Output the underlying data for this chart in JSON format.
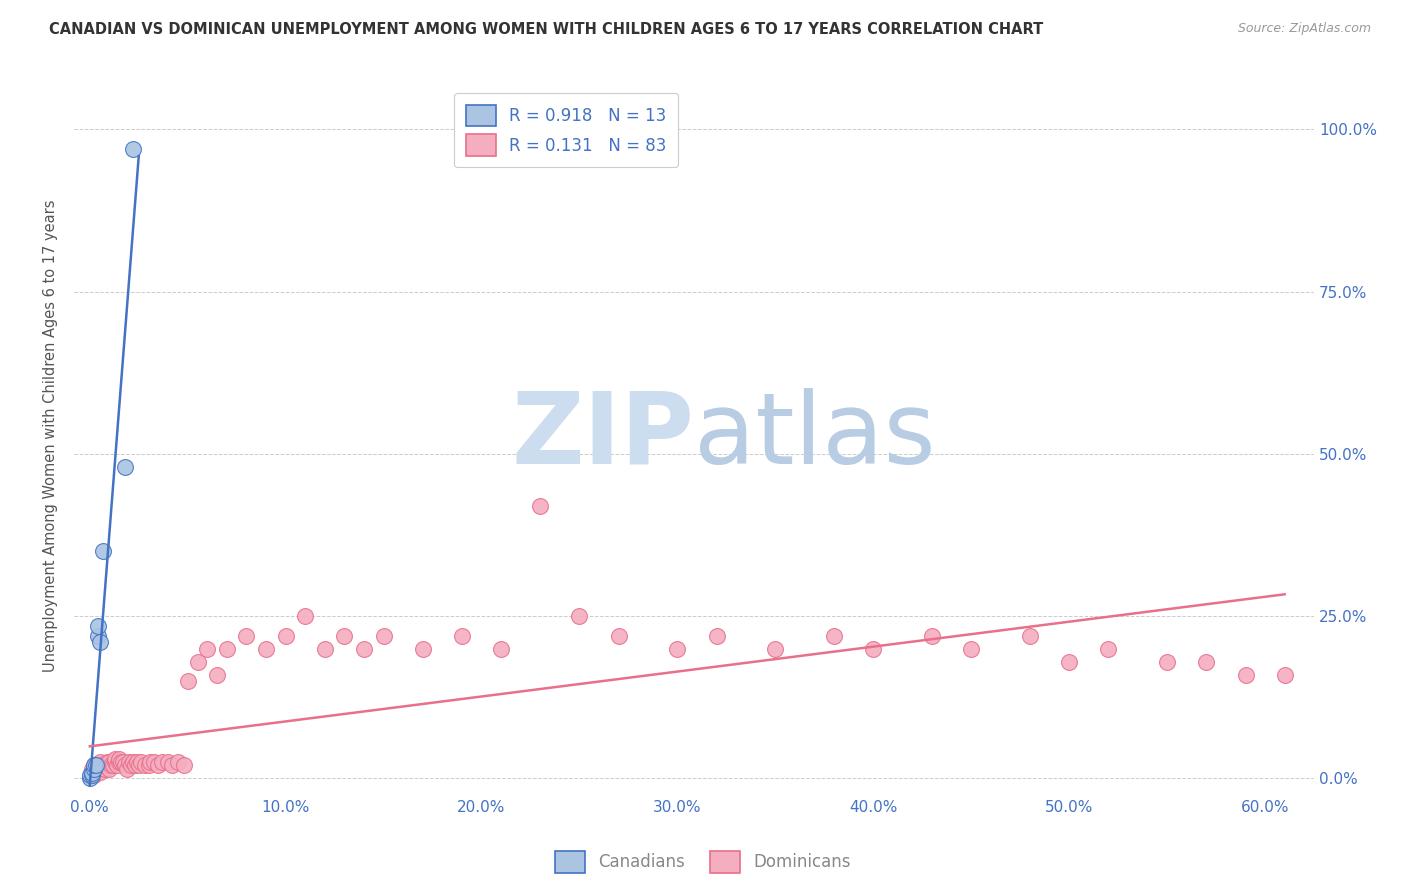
{
  "title": "CANADIAN VS DOMINICAN UNEMPLOYMENT AMONG WOMEN WITH CHILDREN AGES 6 TO 17 YEARS CORRELATION CHART",
  "source": "Source: ZipAtlas.com",
  "ylabel": "Unemployment Among Women with Children Ages 6 to 17 years",
  "xlabel_ticks": [
    "0.0%",
    "10.0%",
    "20.0%",
    "30.0%",
    "40.0%",
    "50.0%",
    "60.0%"
  ],
  "xlabel_vals": [
    0.0,
    0.1,
    0.2,
    0.3,
    0.4,
    0.5,
    0.6
  ],
  "ylabel_ticks": [
    "0.0%",
    "25.0%",
    "50.0%",
    "75.0%",
    "100.0%"
  ],
  "ylabel_vals": [
    0.0,
    0.25,
    0.5,
    0.75,
    1.0
  ],
  "xlim": [
    -0.008,
    0.625
  ],
  "ylim": [
    -0.025,
    1.08
  ],
  "legend_canadian": "R = 0.918   N = 13",
  "legend_dominican": "R = 0.131   N = 83",
  "canadian_color": "#aac4e2",
  "dominican_color": "#f5adc0",
  "canadian_line_color": "#4472c4",
  "dominican_line_color": "#e8708a",
  "canadian_x": [
    0.0,
    0.0,
    0.001,
    0.001,
    0.002,
    0.002,
    0.003,
    0.004,
    0.004,
    0.005,
    0.007,
    0.018,
    0.022
  ],
  "canadian_y": [
    0.0,
    0.005,
    0.005,
    0.008,
    0.015,
    0.02,
    0.02,
    0.22,
    0.235,
    0.21,
    0.35,
    0.48,
    0.97
  ],
  "dominican_x": [
    0.001,
    0.001,
    0.001,
    0.002,
    0.002,
    0.002,
    0.002,
    0.003,
    0.003,
    0.003,
    0.004,
    0.004,
    0.005,
    0.005,
    0.005,
    0.006,
    0.007,
    0.008,
    0.008,
    0.009,
    0.01,
    0.01,
    0.011,
    0.012,
    0.013,
    0.013,
    0.014,
    0.015,
    0.015,
    0.016,
    0.017,
    0.018,
    0.019,
    0.02,
    0.021,
    0.022,
    0.023,
    0.024,
    0.025,
    0.026,
    0.028,
    0.03,
    0.031,
    0.033,
    0.035,
    0.037,
    0.04,
    0.042,
    0.045,
    0.048,
    0.05,
    0.055,
    0.06,
    0.065,
    0.07,
    0.08,
    0.09,
    0.1,
    0.11,
    0.12,
    0.13,
    0.14,
    0.15,
    0.17,
    0.19,
    0.21,
    0.23,
    0.25,
    0.27,
    0.3,
    0.32,
    0.35,
    0.38,
    0.4,
    0.43,
    0.45,
    0.48,
    0.5,
    0.52,
    0.55,
    0.57,
    0.59,
    0.61
  ],
  "dominican_y": [
    0.005,
    0.01,
    0.015,
    0.005,
    0.01,
    0.015,
    0.02,
    0.01,
    0.015,
    0.02,
    0.015,
    0.02,
    0.01,
    0.02,
    0.025,
    0.02,
    0.02,
    0.015,
    0.02,
    0.025,
    0.015,
    0.025,
    0.02,
    0.02,
    0.025,
    0.03,
    0.02,
    0.025,
    0.03,
    0.025,
    0.025,
    0.02,
    0.015,
    0.025,
    0.02,
    0.025,
    0.02,
    0.025,
    0.02,
    0.025,
    0.02,
    0.02,
    0.025,
    0.025,
    0.02,
    0.025,
    0.025,
    0.02,
    0.025,
    0.02,
    0.15,
    0.18,
    0.2,
    0.16,
    0.2,
    0.22,
    0.2,
    0.22,
    0.25,
    0.2,
    0.22,
    0.2,
    0.22,
    0.2,
    0.22,
    0.2,
    0.42,
    0.25,
    0.22,
    0.2,
    0.22,
    0.2,
    0.22,
    0.2,
    0.22,
    0.2,
    0.22,
    0.18,
    0.2,
    0.18,
    0.18,
    0.16,
    0.16
  ],
  "background_color": "#ffffff",
  "grid_color": "#cccccc",
  "title_color": "#333333",
  "axis_label_color": "#555555",
  "tick_color": "#4472c4",
  "watermark_zip_color": "#ccddf0",
  "watermark_atlas_color": "#b8cce4"
}
